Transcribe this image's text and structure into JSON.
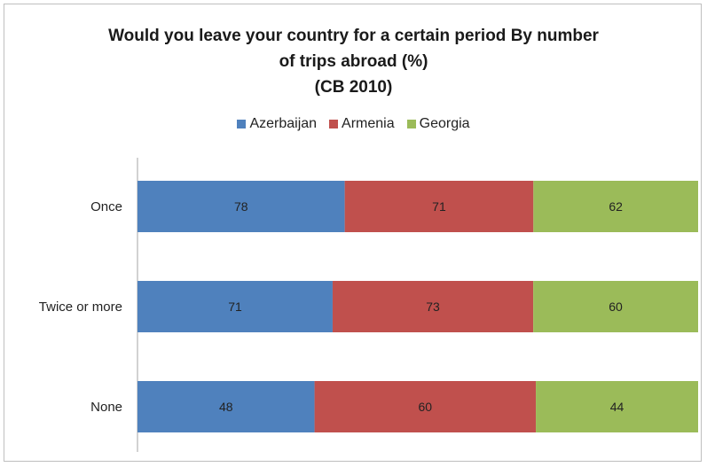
{
  "chart_data": {
    "type": "bar",
    "orientation": "horizontal",
    "stacked": "percent",
    "title_lines": [
      "Would you leave your country for a certain period By number",
      "of trips abroad (%)",
      "(CB 2010)"
    ],
    "categories": [
      "Once",
      "Twice or more",
      "None"
    ],
    "series": [
      {
        "name": "Azerbaijan",
        "color": "#4f81bd",
        "values": [
          78,
          71,
          48
        ]
      },
      {
        "name": "Armenia",
        "color": "#c0504d",
        "values": [
          71,
          73,
          60
        ]
      },
      {
        "name": "Georgia",
        "color": "#9bbb59",
        "values": [
          62,
          60,
          44
        ]
      }
    ],
    "legend_position": "top",
    "grid": false
  }
}
